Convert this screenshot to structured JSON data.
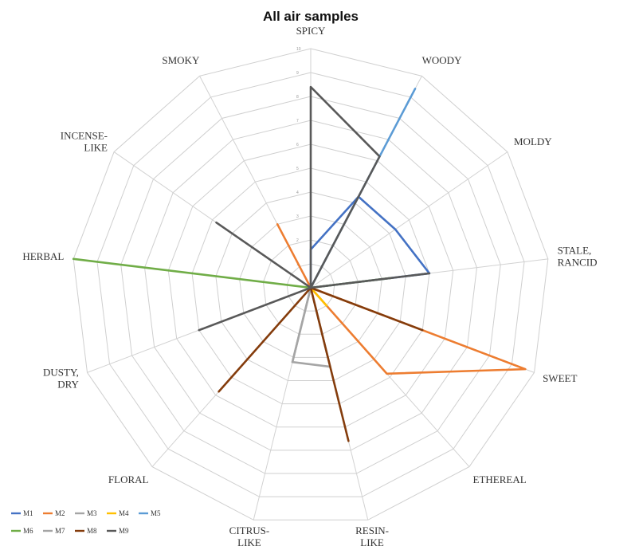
{
  "chart_data": {
    "type": "radar",
    "title": "All air samples",
    "axes": [
      [
        "SPICY"
      ],
      [
        "WOODY"
      ],
      [
        "MOLDY"
      ],
      [
        "STALE,",
        "RANCID"
      ],
      [
        "SWEET"
      ],
      [
        "ETHEREAL"
      ],
      [
        "RESIN-",
        "LIKE"
      ],
      [
        "CITRUS-",
        "LIKE"
      ],
      [
        "FLORAL"
      ],
      [
        "DUSTY,",
        "DRY"
      ],
      [
        "HERBAL"
      ],
      [
        "INCENSE-",
        "LIKE"
      ],
      [
        "SMOKY"
      ]
    ],
    "rlim": [
      0,
      10
    ],
    "ticks": [
      "1",
      "2",
      "3",
      "4",
      "5",
      "6",
      "7",
      "8",
      "9",
      "10"
    ],
    "grid": true,
    "legend_position": "bottom-left",
    "series": [
      {
        "name": "M1",
        "color": "#4472c4",
        "values": [
          1.6,
          4.3,
          4.3,
          5.0,
          0,
          0,
          0,
          0,
          0,
          0,
          0,
          0,
          0
        ]
      },
      {
        "name": "M2",
        "color": "#ed7d31",
        "values": [
          0,
          0,
          0,
          0,
          9.6,
          4.8,
          0,
          0,
          0,
          0,
          0,
          0,
          3.0
        ]
      },
      {
        "name": "M3",
        "color": "#a5a5a5",
        "values": [
          0,
          0,
          0,
          0,
          0,
          0,
          3.4,
          3.2,
          0,
          0,
          0,
          0,
          0
        ]
      },
      {
        "name": "M4",
        "color": "#ffc000",
        "values": [
          0,
          0,
          0,
          0,
          0,
          1.0,
          0,
          0,
          0,
          0,
          0,
          0,
          0
        ]
      },
      {
        "name": "M5",
        "color": "#5b9bd5",
        "values": [
          0,
          9.4,
          0,
          0,
          0,
          0,
          0,
          0,
          0,
          0,
          0,
          0,
          0
        ]
      },
      {
        "name": "M6",
        "color": "#70ad47",
        "values": [
          0,
          0,
          0,
          3.4,
          0,
          0,
          0,
          0,
          0,
          0,
          10.0,
          0,
          0
        ]
      },
      {
        "name": "M7",
        "color": "#a5a5a5",
        "values": [
          0,
          0,
          0,
          0,
          0,
          0,
          0,
          3.2,
          0,
          0,
          0,
          0,
          0
        ]
      },
      {
        "name": "M8",
        "color": "#843c0c",
        "values": [
          0,
          0,
          0,
          0,
          5.0,
          0,
          6.6,
          0,
          5.8,
          0,
          0,
          0,
          0
        ]
      },
      {
        "name": "M9",
        "color": "#595959",
        "values": [
          8.4,
          6.2,
          0,
          5.0,
          0,
          0,
          0,
          0,
          0,
          5.0,
          0,
          4.8,
          0
        ]
      }
    ]
  }
}
